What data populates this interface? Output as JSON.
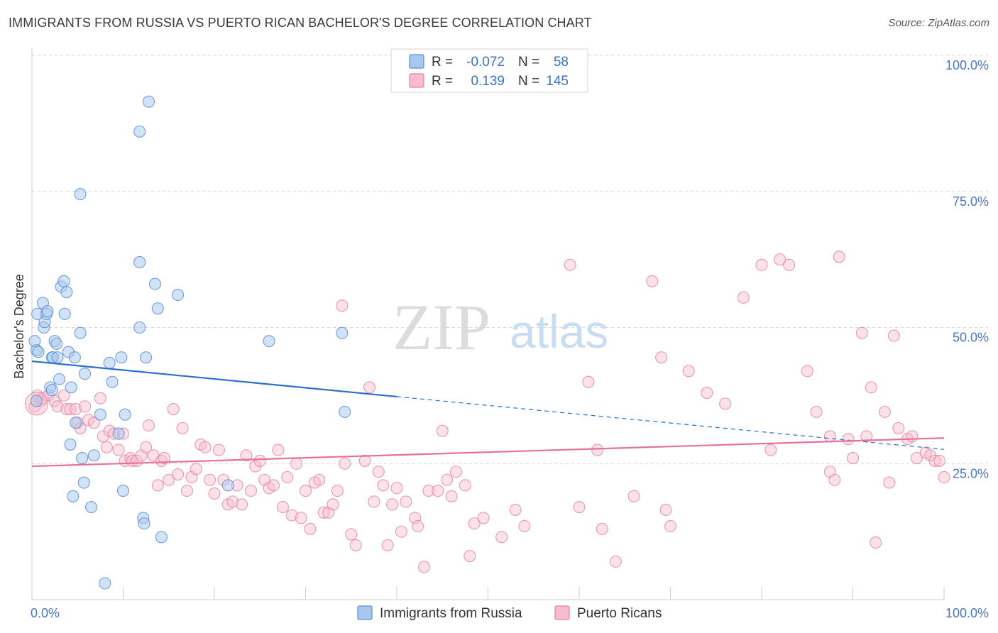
{
  "title": "IMMIGRANTS FROM RUSSIA VS PUERTO RICAN BACHELOR'S DEGREE CORRELATION CHART",
  "source": "Source: ZipAtlas.com",
  "watermark": {
    "zip": "ZIP",
    "atlas": "atlas"
  },
  "colors": {
    "russia_fill": "#a8c8f0",
    "russia_stroke": "#5b8fd6",
    "russia_line": "#2a6fcf",
    "pr_fill": "#f7bccd",
    "pr_stroke": "#e87fa0",
    "pr_line": "#e8709a",
    "tick_text": "#4a78c8",
    "grid": "#d8d8d8"
  },
  "legend": {
    "r_label": "R =",
    "n_label": "N =",
    "russia": {
      "r": "-0.072",
      "n": "58"
    },
    "pr": {
      "r": "0.139",
      "n": "145"
    }
  },
  "chart_data": {
    "type": "scatter",
    "title": "IMMIGRANTS FROM RUSSIA VS PUERTO RICAN BACHELOR'S DEGREE CORRELATION CHART",
    "xlabel": "",
    "ylabel": "Bachelor's Degree",
    "xlim": [
      0,
      100
    ],
    "ylim": [
      0,
      100
    ],
    "x_tick_labels": [
      "0.0%",
      "100.0%"
    ],
    "y_tick_labels": [
      "25.0%",
      "50.0%",
      "75.0%",
      "100.0%"
    ],
    "y_ticks": [
      25,
      50,
      75,
      100
    ],
    "grid": true,
    "legend_position": "top-center",
    "series": [
      {
        "name": "Immigrants from Russia",
        "trend": {
          "x0": 0,
          "y0": 43.8,
          "x1": 40,
          "y1": 37.3,
          "dashed_to_x": 100,
          "dashed_to_y": 27.6
        },
        "points": [
          [
            0.3,
            47.5
          ],
          [
            0.5,
            45.8
          ],
          [
            0.6,
            52.5
          ],
          [
            0.7,
            45.5
          ],
          [
            0.5,
            36.5
          ],
          [
            1.2,
            54.5
          ],
          [
            1.3,
            50
          ],
          [
            1.4,
            51
          ],
          [
            1.6,
            52.5
          ],
          [
            1.7,
            53
          ],
          [
            2,
            39
          ],
          [
            2.2,
            44.5
          ],
          [
            2.3,
            44.5
          ],
          [
            2.5,
            47.5
          ],
          [
            2.7,
            47
          ],
          [
            2.8,
            44.5
          ],
          [
            3,
            40.5
          ],
          [
            3.2,
            57.5
          ],
          [
            3.5,
            58.5
          ],
          [
            3.6,
            52.5
          ],
          [
            3.8,
            56.5
          ],
          [
            4,
            45.5
          ],
          [
            4.2,
            28.5
          ],
          [
            4.3,
            39
          ],
          [
            4.5,
            19
          ],
          [
            4.7,
            44.5
          ],
          [
            4.8,
            32.5
          ],
          [
            5.3,
            74.5
          ],
          [
            5.3,
            49
          ],
          [
            5.5,
            26
          ],
          [
            5.7,
            21.5
          ],
          [
            5.8,
            41.5
          ],
          [
            6.5,
            17
          ],
          [
            6.8,
            26.5
          ],
          [
            7.5,
            34
          ],
          [
            8,
            3
          ],
          [
            8.5,
            43.5
          ],
          [
            8.8,
            40
          ],
          [
            9.5,
            30.5
          ],
          [
            9.8,
            44.5
          ],
          [
            10,
            20
          ],
          [
            10.2,
            34
          ],
          [
            11.8,
            86
          ],
          [
            11.8,
            62
          ],
          [
            11.8,
            50
          ],
          [
            12.2,
            15
          ],
          [
            12.3,
            14
          ],
          [
            12.8,
            91.5
          ],
          [
            12.5,
            44.5
          ],
          [
            13.5,
            58
          ],
          [
            13.8,
            53.5
          ],
          [
            14.2,
            11.5
          ],
          [
            16,
            56
          ],
          [
            21.5,
            21
          ],
          [
            26,
            47.5
          ],
          [
            34,
            49
          ],
          [
            34.3,
            34.5
          ],
          [
            2.2,
            38.5
          ]
        ]
      },
      {
        "name": "Puerto Ricans",
        "trend": {
          "x0": 0,
          "y0": 24.5,
          "x1": 100,
          "y1": 29.7
        },
        "points": [
          [
            0.3,
            35.5
          ],
          [
            0.6,
            37.5
          ],
          [
            1,
            36.5
          ],
          [
            1.2,
            37
          ],
          [
            1.8,
            37.5
          ],
          [
            2.5,
            36.5
          ],
          [
            2.8,
            35.5
          ],
          [
            3.5,
            37.5
          ],
          [
            3.8,
            35
          ],
          [
            4.2,
            35
          ],
          [
            4.8,
            35
          ],
          [
            5,
            32.5
          ],
          [
            5.3,
            31.5
          ],
          [
            5.8,
            35.5
          ],
          [
            6.2,
            33
          ],
          [
            6.8,
            32.5
          ],
          [
            7.5,
            37
          ],
          [
            7.8,
            30
          ],
          [
            8.2,
            28
          ],
          [
            8.5,
            31
          ],
          [
            9,
            30.5
          ],
          [
            9.5,
            27.5
          ],
          [
            10,
            30.5
          ],
          [
            10.2,
            25.5
          ],
          [
            10.8,
            26
          ],
          [
            11,
            25.5
          ],
          [
            11.5,
            25.5
          ],
          [
            12,
            26.5
          ],
          [
            12.5,
            28
          ],
          [
            12.8,
            32
          ],
          [
            13.3,
            26.5
          ],
          [
            13.8,
            21
          ],
          [
            14.2,
            25.5
          ],
          [
            14.5,
            26
          ],
          [
            15,
            22
          ],
          [
            15.5,
            35
          ],
          [
            16,
            23
          ],
          [
            16.5,
            31.5
          ],
          [
            17,
            20
          ],
          [
            17.5,
            22.5
          ],
          [
            18,
            24
          ],
          [
            18.5,
            28.5
          ],
          [
            19,
            28
          ],
          [
            19.5,
            22
          ],
          [
            20,
            19.5
          ],
          [
            20.5,
            27.5
          ],
          [
            21,
            22
          ],
          [
            21.5,
            17.5
          ],
          [
            22,
            18
          ],
          [
            22.5,
            21
          ],
          [
            23,
            17.5
          ],
          [
            23.5,
            26.5
          ],
          [
            24,
            20
          ],
          [
            24.5,
            24.5
          ],
          [
            25,
            25.5
          ],
          [
            25.5,
            22
          ],
          [
            26,
            20.5
          ],
          [
            26.5,
            21
          ],
          [
            27,
            27.5
          ],
          [
            27.5,
            17
          ],
          [
            28,
            22.5
          ],
          [
            28.5,
            15.5
          ],
          [
            29,
            25
          ],
          [
            29.5,
            15
          ],
          [
            30,
            20
          ],
          [
            30.5,
            13
          ],
          [
            31,
            21.5
          ],
          [
            31.5,
            22
          ],
          [
            32,
            16
          ],
          [
            32.5,
            16
          ],
          [
            33,
            17.5
          ],
          [
            33.5,
            20
          ],
          [
            34,
            54
          ],
          [
            34.3,
            25
          ],
          [
            35,
            12
          ],
          [
            35.5,
            10
          ],
          [
            36.5,
            25.5
          ],
          [
            37,
            39
          ],
          [
            37.5,
            18
          ],
          [
            38,
            23.5
          ],
          [
            38.5,
            21
          ],
          [
            39,
            10
          ],
          [
            39.5,
            17.5
          ],
          [
            40,
            20.5
          ],
          [
            40.5,
            12.5
          ],
          [
            41,
            18
          ],
          [
            42,
            15
          ],
          [
            42.3,
            13.5
          ],
          [
            43,
            6
          ],
          [
            43.5,
            20
          ],
          [
            44.5,
            20
          ],
          [
            45,
            31
          ],
          [
            45.5,
            22
          ],
          [
            46,
            19
          ],
          [
            46.5,
            23.5
          ],
          [
            47.5,
            21
          ],
          [
            48,
            8
          ],
          [
            48.5,
            14
          ],
          [
            49.5,
            15
          ],
          [
            51.5,
            11.5
          ],
          [
            53,
            16.5
          ],
          [
            54,
            13.5
          ],
          [
            59,
            61.5
          ],
          [
            60,
            17
          ],
          [
            61,
            40
          ],
          [
            62,
            27.5
          ],
          [
            62.5,
            13
          ],
          [
            64,
            7
          ],
          [
            66,
            19
          ],
          [
            68,
            58.5
          ],
          [
            69,
            44.5
          ],
          [
            69.5,
            16.5
          ],
          [
            70,
            13.5
          ],
          [
            72,
            42
          ],
          [
            74,
            38
          ],
          [
            76,
            36
          ],
          [
            78,
            55.5
          ],
          [
            80,
            61.5
          ],
          [
            81,
            27.5
          ],
          [
            82,
            62.5
          ],
          [
            83,
            61.5
          ],
          [
            85,
            42
          ],
          [
            86,
            34.5
          ],
          [
            87.5,
            23.5
          ],
          [
            87.5,
            30
          ],
          [
            88,
            22
          ],
          [
            88.5,
            63
          ],
          [
            89.5,
            29.5
          ],
          [
            90,
            26
          ],
          [
            91,
            49
          ],
          [
            91.5,
            30
          ],
          [
            92,
            39
          ],
          [
            92.5,
            10.5
          ],
          [
            93.5,
            34.5
          ],
          [
            94,
            21.5
          ],
          [
            94.5,
            48.5
          ],
          [
            95,
            31.5
          ],
          [
            96,
            29.5
          ],
          [
            96.5,
            30
          ],
          [
            97,
            26
          ],
          [
            98,
            27
          ],
          [
            98.5,
            26.5
          ],
          [
            99,
            25.5
          ],
          [
            99.5,
            25.5
          ],
          [
            100,
            22.5
          ]
        ]
      }
    ]
  },
  "bottom_legend": {
    "russia": "Immigrants from Russia",
    "pr": "Puerto Ricans"
  }
}
